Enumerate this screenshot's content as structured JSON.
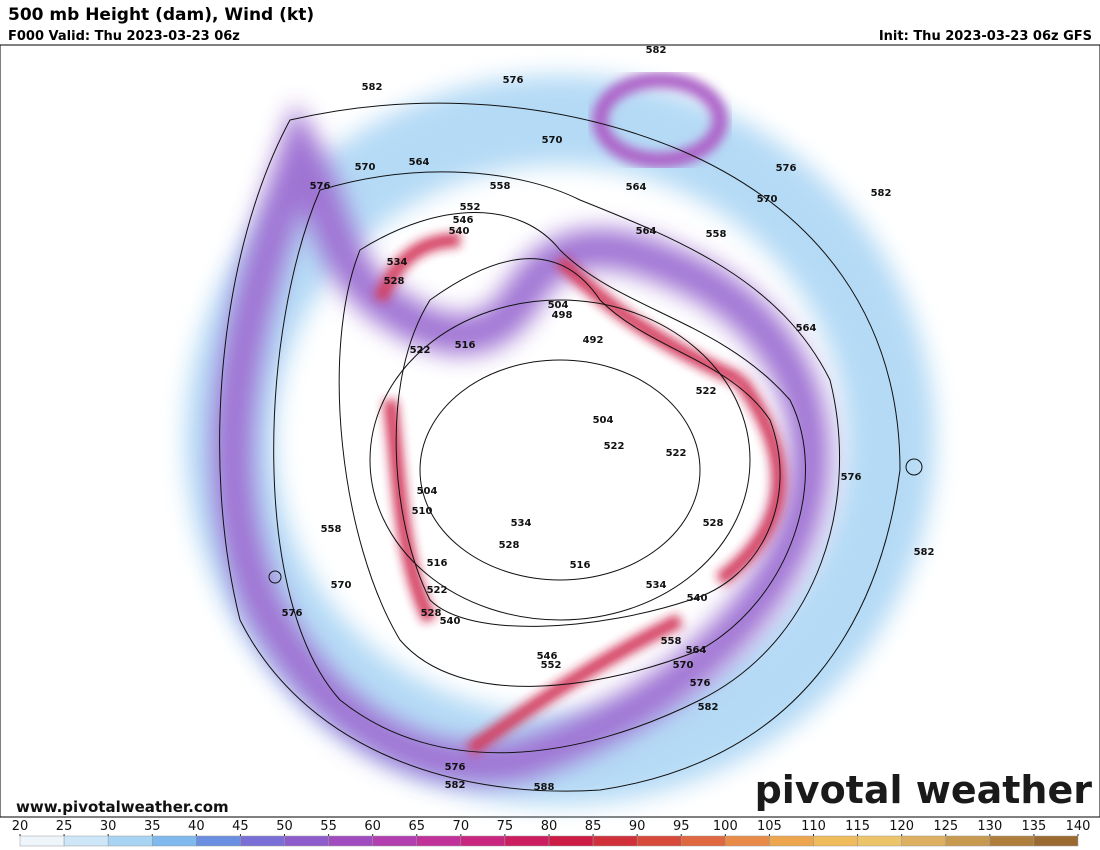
{
  "header": {
    "title": "500 mb Height (dam), Wind (kt)",
    "valid": "F000 Valid: Thu 2023-03-23 06z",
    "init": "Init: Thu 2023-03-23 06z GFS"
  },
  "map": {
    "contour_labels": [
      "582",
      "576",
      "582",
      "570",
      "564",
      "570",
      "576",
      "558",
      "564",
      "576",
      "570",
      "582",
      "552",
      "546",
      "540",
      "564",
      "558",
      "534",
      "528",
      "504",
      "498",
      "492",
      "516",
      "522",
      "564",
      "522",
      "504",
      "522",
      "522",
      "576",
      "504",
      "510",
      "534",
      "528",
      "528",
      "558",
      "582",
      "516",
      "516",
      "522",
      "534",
      "570",
      "540",
      "528",
      "540",
      "576",
      "558",
      "564",
      "546",
      "552",
      "570",
      "576",
      "582",
      "576",
      "582",
      "588"
    ]
  },
  "footer": {
    "website": "www.pivotalweather.com",
    "brand": "pivotal weather"
  },
  "colorbar": {
    "ticks": [
      20,
      25,
      30,
      35,
      40,
      45,
      50,
      55,
      60,
      65,
      70,
      75,
      80,
      85,
      90,
      95,
      100,
      105,
      110,
      115,
      120,
      125,
      130,
      135,
      140
    ],
    "colors": [
      "#eef6fc",
      "#cde6f8",
      "#a8d4f4",
      "#7fb9ee",
      "#6a8fe0",
      "#7a6fd6",
      "#8f5ccc",
      "#a04cc0",
      "#b23eb0",
      "#c0329a",
      "#c9267f",
      "#cc1d60",
      "#cc1b44",
      "#d0303a",
      "#d84a3a",
      "#e06840",
      "#e88a48",
      "#eea64e",
      "#f0bb5a",
      "#ecc56a",
      "#dcb060",
      "#c89a50",
      "#b07e3c",
      "#9a6a30"
    ]
  }
}
